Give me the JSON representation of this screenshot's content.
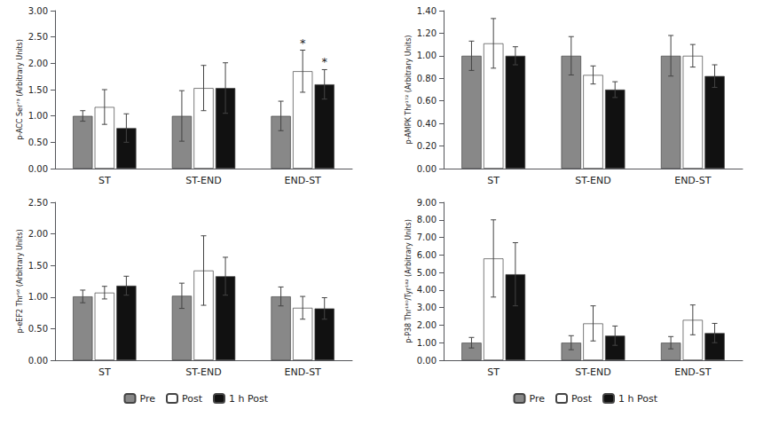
{
  "chart_data": [
    {
      "type": "bar",
      "ylabel": "p-ACC Ser⁷⁹ (Arbitrary Units)",
      "categories": [
        "ST",
        "ST-END",
        "END-ST"
      ],
      "series": [
        {
          "name": "Pre",
          "color": "#888888",
          "values": [
            1.0,
            1.0,
            1.0
          ],
          "errors": [
            0.1,
            0.48,
            0.28
          ]
        },
        {
          "name": "Post",
          "color": "#ffffff",
          "values": [
            1.17,
            1.53,
            1.85
          ],
          "errors": [
            0.33,
            0.43,
            0.4
          ]
        },
        {
          "name": "1 h Post",
          "color": "#111111",
          "values": [
            0.77,
            1.53,
            1.6
          ],
          "errors": [
            0.27,
            0.48,
            0.28
          ]
        }
      ],
      "annotations": [
        {
          "category": "END-ST",
          "series": "Post",
          "text": "*"
        },
        {
          "category": "END-ST",
          "series": "1 h Post",
          "text": "*"
        }
      ],
      "ylim": [
        0.0,
        3.0
      ],
      "yticks": [
        {
          "value": 0.0,
          "label": "0.00"
        },
        {
          "value": 0.5,
          "label": "0.50"
        },
        {
          "value": 1.0,
          "label": "1.00"
        },
        {
          "value": 1.5,
          "label": "1.50"
        },
        {
          "value": 2.0,
          "label": "2.00"
        },
        {
          "value": 2.5,
          "label": "2.50"
        },
        {
          "value": 3.0,
          "label": "3.00"
        }
      ],
      "grid": false
    },
    {
      "type": "bar",
      "ylabel": "p-AMPK Thr¹⁷² (Arbitrary Units)",
      "categories": [
        "ST",
        "ST-END",
        "END-ST"
      ],
      "series": [
        {
          "name": "Pre",
          "color": "#888888",
          "values": [
            1.0,
            1.0,
            1.0
          ],
          "errors": [
            0.13,
            0.17,
            0.18
          ]
        },
        {
          "name": "Post",
          "color": "#ffffff",
          "values": [
            1.11,
            0.83,
            1.0
          ],
          "errors": [
            0.22,
            0.08,
            0.1
          ]
        },
        {
          "name": "1 h Post",
          "color": "#111111",
          "values": [
            1.0,
            0.7,
            0.82
          ],
          "errors": [
            0.08,
            0.07,
            0.1
          ]
        }
      ],
      "ylim": [
        0.0,
        1.4
      ],
      "yticks": [
        {
          "value": 0.0,
          "label": "0.00"
        },
        {
          "value": 0.2,
          "label": "0.20"
        },
        {
          "value": 0.4,
          "label": "0.40"
        },
        {
          "value": 0.6,
          "label": "0.60"
        },
        {
          "value": 0.8,
          "label": "0.80"
        },
        {
          "value": 1.0,
          "label": "1.00"
        },
        {
          "value": 1.2,
          "label": "1.20"
        },
        {
          "value": 1.4,
          "label": "1.40"
        }
      ],
      "grid": false
    },
    {
      "type": "bar",
      "ylabel": "p-eEF2 Thr⁵⁶ (Arbitrary Units)",
      "categories": [
        "ST",
        "ST-END",
        "END-ST"
      ],
      "series": [
        {
          "name": "Pre",
          "color": "#888888",
          "values": [
            1.01,
            1.02,
            1.01
          ],
          "errors": [
            0.1,
            0.2,
            0.15
          ]
        },
        {
          "name": "Post",
          "color": "#ffffff",
          "values": [
            1.07,
            1.42,
            0.83
          ],
          "errors": [
            0.1,
            0.55,
            0.18
          ]
        },
        {
          "name": "1 h Post",
          "color": "#111111",
          "values": [
            1.18,
            1.33,
            0.82
          ],
          "errors": [
            0.15,
            0.3,
            0.17
          ]
        }
      ],
      "ylim": [
        0.0,
        2.5
      ],
      "yticks": [
        {
          "value": 0.0,
          "label": "0.00"
        },
        {
          "value": 0.5,
          "label": "0.50"
        },
        {
          "value": 1.0,
          "label": "1.00"
        },
        {
          "value": 1.5,
          "label": "1.50"
        },
        {
          "value": 2.0,
          "label": "2.00"
        },
        {
          "value": 2.5,
          "label": "2.50"
        }
      ],
      "grid": false,
      "legend": "bottom"
    },
    {
      "type": "bar",
      "ylabel": "p-P38 Thr¹⁸⁰/Tyr¹⁸² (Arbitrary Units)",
      "categories": [
        "ST",
        "ST-END",
        "END-ST"
      ],
      "series": [
        {
          "name": "Pre",
          "color": "#888888",
          "values": [
            1.0,
            1.0,
            1.0
          ],
          "errors": [
            0.3,
            0.4,
            0.35
          ]
        },
        {
          "name": "Post",
          "color": "#ffffff",
          "values": [
            5.8,
            2.1,
            2.3
          ],
          "errors": [
            2.2,
            1.0,
            0.85
          ]
        },
        {
          "name": "1 h Post",
          "color": "#111111",
          "values": [
            4.9,
            1.4,
            1.55
          ],
          "errors": [
            1.8,
            0.55,
            0.55
          ]
        }
      ],
      "ylim": [
        0.0,
        9.0
      ],
      "yticks": [
        {
          "value": 0.0,
          "label": "0.00"
        },
        {
          "value": 1.0,
          "label": "1.00"
        },
        {
          "value": 2.0,
          "label": "2.00"
        },
        {
          "value": 3.0,
          "label": "3.00"
        },
        {
          "value": 4.0,
          "label": "4.00"
        },
        {
          "value": 5.0,
          "label": "5.00"
        },
        {
          "value": 6.0,
          "label": "6.00"
        },
        {
          "value": 7.0,
          "label": "7.00"
        },
        {
          "value": 8.0,
          "label": "8.00"
        },
        {
          "value": 9.0,
          "label": "9.00"
        }
      ],
      "grid": false,
      "legend": "bottom"
    }
  ]
}
